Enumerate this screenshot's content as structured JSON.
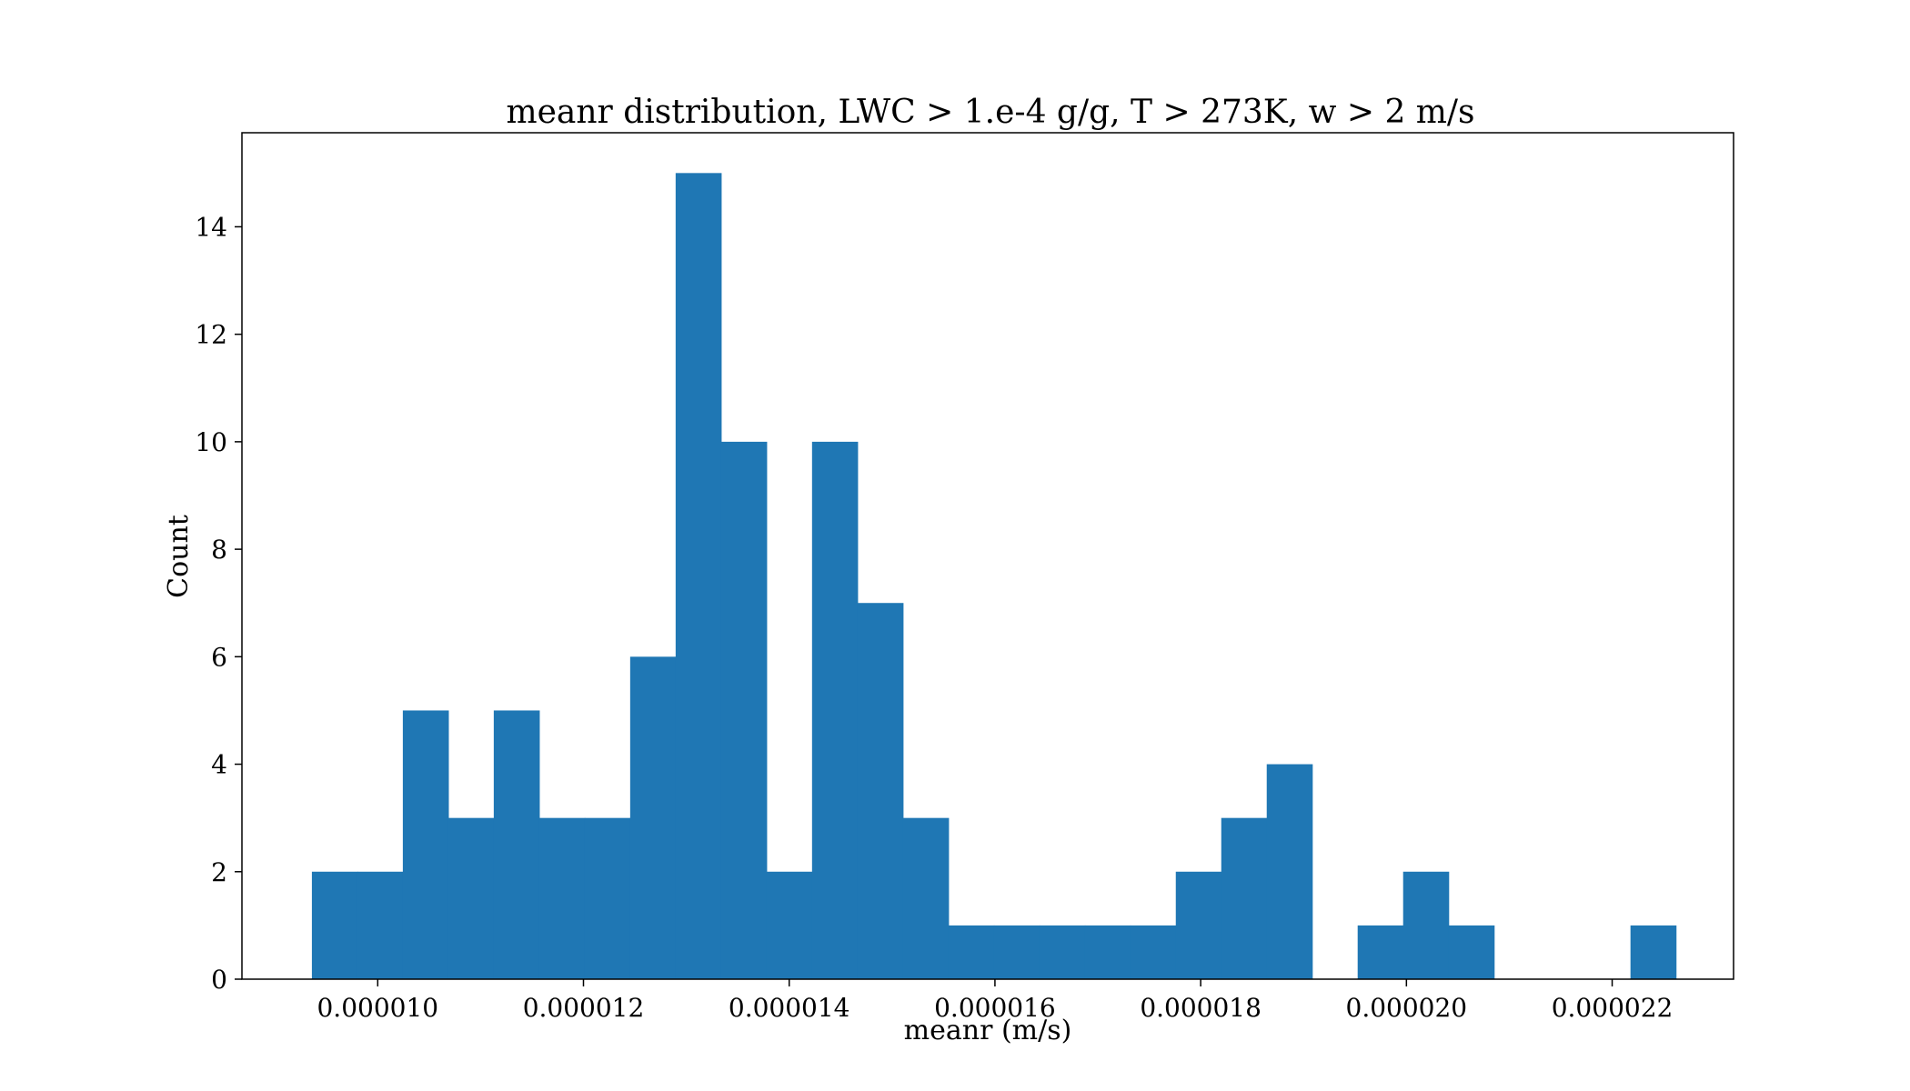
{
  "chart_data": {
    "type": "bar",
    "title": "meanr distribution, LWC > 1.e-4 g/g, T > 273K, w > 2 m/s",
    "xlabel": "meanr (m/s)",
    "ylabel": "Count",
    "xlim": [
      8.68e-06,
      2.318e-05
    ],
    "ylim": [
      0,
      15.75
    ],
    "bin_start": 9.36e-06,
    "bin_width": 4.42e-07,
    "counts": [
      2,
      2,
      5,
      3,
      5,
      3,
      3,
      6,
      15,
      10,
      2,
      10,
      7,
      3,
      1,
      1,
      1,
      1,
      1,
      2,
      3,
      4,
      0,
      1,
      2,
      1,
      0,
      0,
      0,
      1
    ],
    "xticks": [
      1e-05,
      1.2e-05,
      1.4e-05,
      1.6e-05,
      1.8e-05,
      2e-05,
      2.2e-05
    ],
    "xtick_labels": [
      "0.000010",
      "0.000012",
      "0.000014",
      "0.000016",
      "0.000018",
      "0.000020",
      "0.000022"
    ],
    "yticks": [
      0,
      2,
      4,
      6,
      8,
      10,
      12,
      14
    ],
    "ytick_labels": [
      "0",
      "2",
      "4",
      "6",
      "8",
      "10",
      "12",
      "14"
    ],
    "bar_color": "#1f77b4",
    "grid": false
  }
}
